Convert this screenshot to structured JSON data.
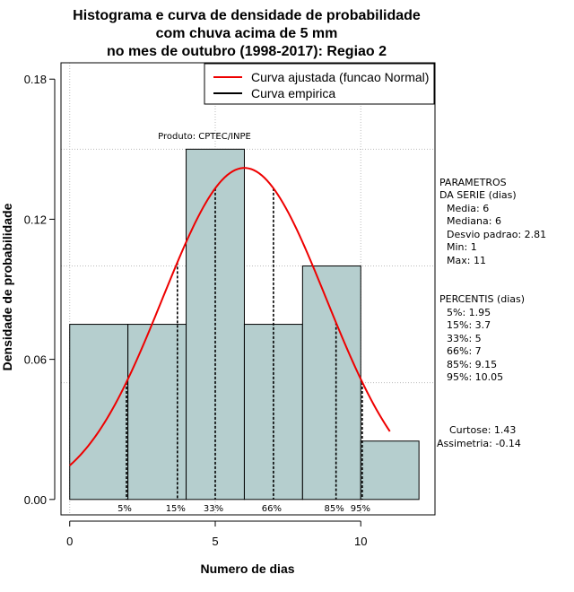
{
  "chart_data": {
    "type": "histogram",
    "title_lines": [
      "Histograma e curva de densidade de probabilidade",
      "com chuva acima de 5 mm",
      "no mes de outubro (1998-2017): Regiao 2"
    ],
    "xlabel": "Numero de dias",
    "ylabel": "Densidade de probabilidade",
    "xlim": [
      -0.3,
      12.55
    ],
    "ylim": [
      -0.0066,
      0.187
    ],
    "x_ticks": [
      0,
      5,
      10
    ],
    "y_ticks": [
      0.0,
      0.06,
      0.12,
      0.18
    ],
    "y_tick_labels": [
      "0.00",
      "0.06",
      "0.12",
      "0.18"
    ],
    "grid_y": [
      0.05,
      0.1,
      0.15
    ],
    "grid_x": [
      0,
      5,
      10
    ],
    "bins": [
      {
        "x0": 0,
        "x1": 2,
        "density": 0.075
      },
      {
        "x0": 2,
        "x1": 4,
        "density": 0.075
      },
      {
        "x0": 4,
        "x1": 6,
        "density": 0.15
      },
      {
        "x0": 6,
        "x1": 8,
        "density": 0.075
      },
      {
        "x0": 8,
        "x1": 10,
        "density": 0.1
      },
      {
        "x0": 10,
        "x1": 12,
        "density": 0.025
      }
    ],
    "bar_color": "#b5cece",
    "normal_curve": {
      "mean": 6,
      "sd": 2.81,
      "x_from": 0,
      "x_to": 11,
      "color": "#ee0000"
    },
    "percentiles": [
      {
        "label": "5%",
        "x": 1.95
      },
      {
        "label": "15%",
        "x": 3.7
      },
      {
        "label": "33%",
        "x": 5
      },
      {
        "label": "66%",
        "x": 7
      },
      {
        "label": "85%",
        "x": 9.15
      },
      {
        "label": "95%",
        "x": 10.05
      }
    ],
    "legend": {
      "position": "top-right",
      "items": [
        {
          "label": "Curva ajustada (funcao Normal)",
          "color": "#ee0000"
        },
        {
          "label": "Curva empirica",
          "color": "#000000"
        }
      ]
    },
    "product_label": "Produto: CPTEC/INPE",
    "parameters": {
      "header": [
        "PARAMETROS",
        "DA SERIE (dias)"
      ],
      "lines": [
        "Media: 6",
        "Mediana: 6",
        "Desvio padrao: 2.81",
        "Min: 1",
        "Max: 11"
      ]
    },
    "percentis_block": {
      "header": "PERCENTIS (dias)",
      "lines": [
        "5%: 1.95",
        "15%: 3.7",
        "33%: 5",
        "66%: 7",
        "85%: 9.15",
        "95%: 10.05"
      ]
    },
    "shape": {
      "lines": [
        "Curtose: 1.43",
        "Assimetria: -0.14"
      ]
    }
  }
}
